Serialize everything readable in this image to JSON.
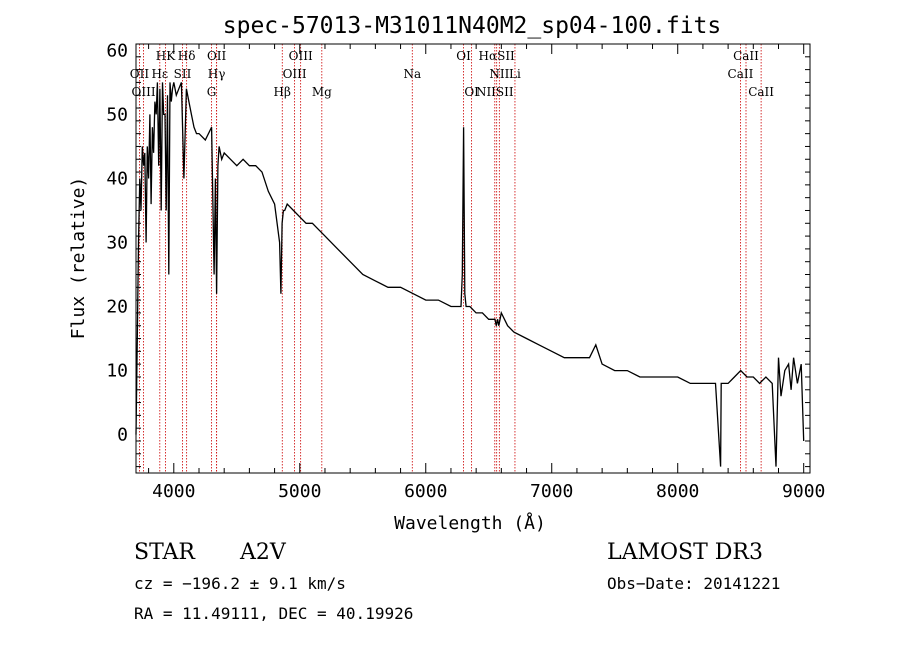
{
  "chart_data": {
    "type": "line",
    "title": "spec-57013-M31011N40M2_sp04-100.fits",
    "xlabel": "Wavelength (Å)",
    "ylabel": "Flux (relative)",
    "xlim": [
      3700,
      9050
    ],
    "ylim": [
      -6,
      61
    ],
    "xticks": [
      4000,
      5000,
      6000,
      7000,
      8000,
      9000
    ],
    "yticks": [
      0,
      10,
      20,
      30,
      40,
      50,
      60
    ],
    "series": [
      {
        "name": "spectrum",
        "x": [
          3700,
          3710,
          3720,
          3730,
          3740,
          3750,
          3760,
          3770,
          3780,
          3790,
          3800,
          3810,
          3820,
          3830,
          3840,
          3850,
          3860,
          3870,
          3880,
          3890,
          3900,
          3910,
          3920,
          3930,
          3940,
          3950,
          3960,
          3970,
          3980,
          3990,
          4000,
          4020,
          4040,
          4060,
          4080,
          4100,
          4120,
          4140,
          4160,
          4180,
          4200,
          4250,
          4300,
          4320,
          4330,
          4340,
          4350,
          4360,
          4380,
          4400,
          4450,
          4500,
          4550,
          4600,
          4650,
          4700,
          4750,
          4800,
          4840,
          4850,
          4860,
          4870,
          4880,
          4900,
          4950,
          5000,
          5050,
          5100,
          5150,
          5200,
          5300,
          5400,
          5500,
          5600,
          5700,
          5800,
          5900,
          6000,
          6100,
          6200,
          6280,
          6290,
          6300,
          6310,
          6320,
          6350,
          6400,
          6450,
          6500,
          6550,
          6560,
          6570,
          6580,
          6600,
          6650,
          6700,
          6800,
          6900,
          7000,
          7100,
          7200,
          7300,
          7350,
          7400,
          7500,
          7600,
          7700,
          7800,
          7900,
          8000,
          8100,
          8200,
          8300,
          8340,
          8345,
          8360,
          8400,
          8450,
          8500,
          8550,
          8600,
          8650,
          8700,
          8750,
          8780,
          8800,
          8820,
          8850,
          8880,
          8900,
          8920,
          8950,
          8980,
          9000
        ],
        "y": [
          0,
          15,
          30,
          40,
          35,
          45,
          42,
          44,
          30,
          45,
          40,
          50,
          36,
          48,
          44,
          52,
          50,
          55,
          42,
          54,
          35,
          55,
          50,
          50,
          35,
          53,
          25,
          55,
          52,
          54,
          55,
          53,
          54,
          55,
          40,
          54,
          52,
          50,
          48,
          47,
          47,
          46,
          48,
          25,
          40,
          22,
          42,
          45,
          43,
          44,
          43,
          42,
          43,
          42,
          42,
          41,
          38,
          36,
          30,
          22,
          33,
          35,
          35,
          36,
          35,
          34,
          33,
          33,
          32,
          31,
          29,
          27,
          25,
          24,
          23,
          23,
          22,
          21,
          21,
          20,
          20,
          25,
          48,
          22,
          20,
          20,
          19,
          19,
          18,
          18,
          17,
          18,
          17,
          19,
          17,
          16,
          15,
          14,
          13,
          12,
          12,
          12,
          14,
          11,
          10,
          10,
          9,
          9,
          9,
          9,
          8,
          8,
          8,
          -5,
          8,
          8,
          8,
          9,
          10,
          9,
          9,
          8,
          9,
          8,
          -5,
          12,
          6,
          10,
          11,
          7,
          12,
          8,
          11,
          -1
        ],
        "color": "#000000"
      }
    ],
    "lines": [
      {
        "label": "HK",
        "wave": 3934,
        "row": 0
      },
      {
        "label": "Hδ",
        "wave": 4102,
        "row": 0
      },
      {
        "label": "OII",
        "wave": 4340,
        "row": 0
      },
      {
        "label": "OIII",
        "wave": 5007,
        "row": 0
      },
      {
        "label": "OI",
        "wave": 6300,
        "row": 0
      },
      {
        "label": "HαSII",
        "wave": 6563,
        "row": 0
      },
      {
        "label": "CaII",
        "wave": 8542,
        "row": 0
      },
      {
        "label": "OII",
        "wave": 3727,
        "row": 1
      },
      {
        "label": "Hε",
        "wave": 3889,
        "row": 1
      },
      {
        "label": "SII",
        "wave": 4069,
        "row": 1
      },
      {
        "label": "Hγ",
        "wave": 4340,
        "row": 1
      },
      {
        "label": "OIII",
        "wave": 4959,
        "row": 1
      },
      {
        "label": "Na",
        "wave": 5893,
        "row": 1
      },
      {
        "label": "NII",
        "wave": 6584,
        "row": 1
      },
      {
        "label": "Li",
        "wave": 6708,
        "row": 1
      },
      {
        "label": "CaII",
        "wave": 8498,
        "row": 1
      },
      {
        "label": "OIII",
        "wave": 3760,
        "row": 2
      },
      {
        "label": "G",
        "wave": 4300,
        "row": 2
      },
      {
        "label": "Hβ",
        "wave": 4861,
        "row": 2
      },
      {
        "label": "Mg",
        "wave": 5175,
        "row": 2
      },
      {
        "label": "OI",
        "wave": 6364,
        "row": 2
      },
      {
        "label": "NIISII",
        "wave": 6548,
        "row": 2
      },
      {
        "label": "CaII",
        "wave": 8662,
        "row": 2
      }
    ],
    "line_color": "#cc0000"
  },
  "info": {
    "object_type": "STAR",
    "subclass": "A2V",
    "survey": "LAMOST DR3",
    "cz": "cz = −196.2 ± 9.1 km/s",
    "obs_date": "Obs−Date: 20141221",
    "coords": "RA =  11.49111, DEC =  40.19926"
  }
}
